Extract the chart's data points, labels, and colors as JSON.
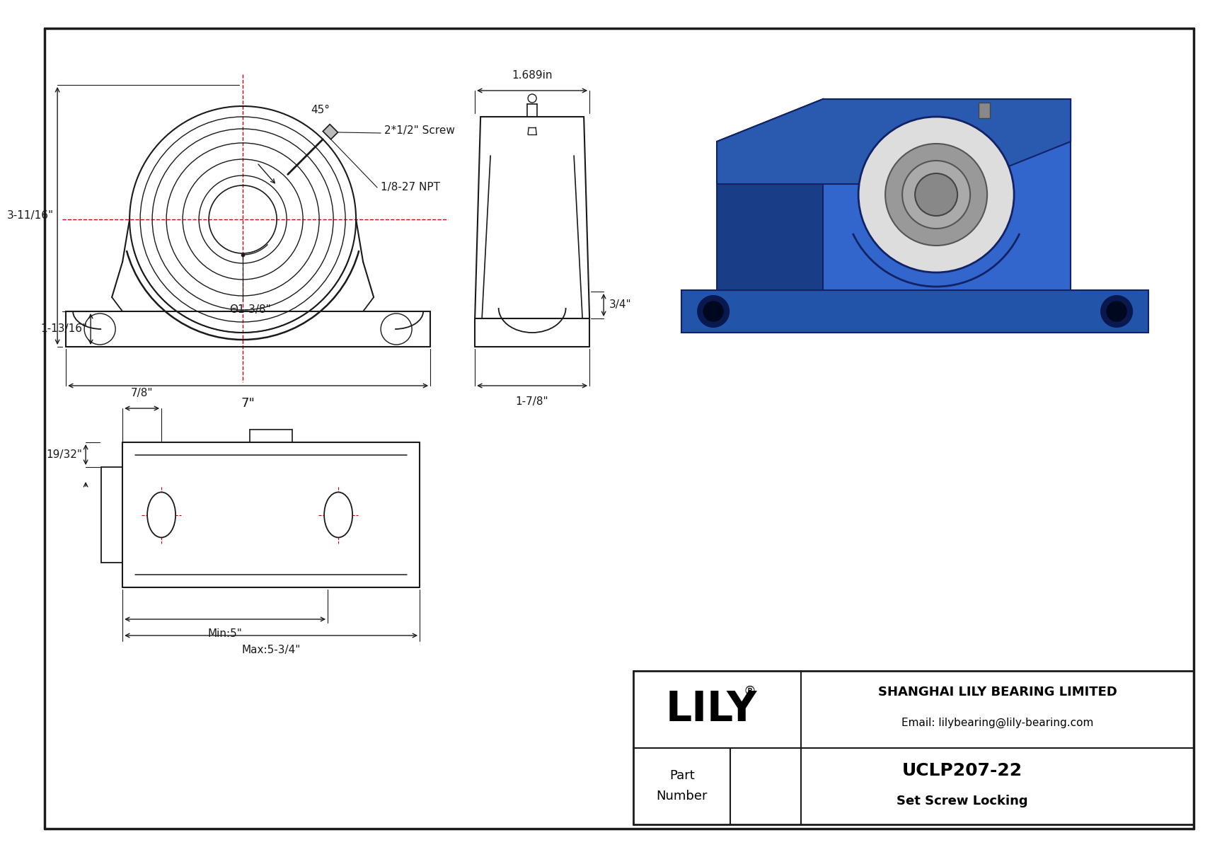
{
  "bg_color": "#ffffff",
  "line_color": "#1a1a1a",
  "red_color": "#cc0000",
  "title": "UCLP207-22",
  "subtitle": "Set Screw Locking",
  "company": "SHANGHAI LILY BEARING LIMITED",
  "email": "Email: lilybearing@lily-bearing.com",
  "part_label": "Part\nNumber",
  "dims": {
    "total_height": "3-11/16\"",
    "base_height": "1-13/16\"",
    "bore_dia": "Θ1-3/8\"",
    "total_width": "7\"",
    "side_width": "1.689in",
    "side_height": "3/4\"",
    "side_base": "1-7/8\"",
    "angle": "45°",
    "screw": "2*1/2\" Screw",
    "npt": "1/8-27 NPT",
    "bot_dim1": "7/8\"",
    "bot_dim2": "19/32\"",
    "bot_min": "Min:5\"",
    "bot_max": "Max:5-3/4\""
  }
}
